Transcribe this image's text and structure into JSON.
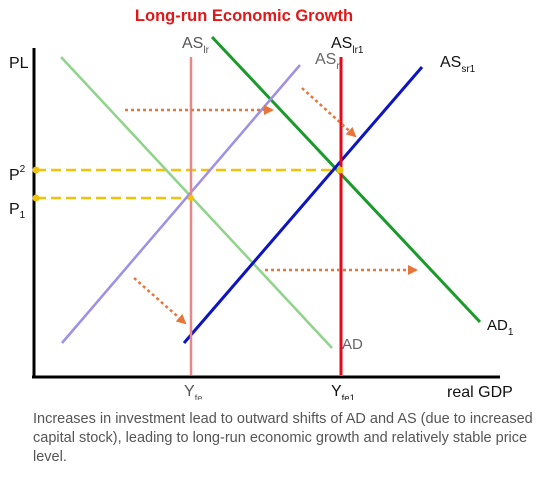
{
  "title": "Long-run Economic  Growth",
  "axes": {
    "y_label": "PL",
    "x_label": "real GDP"
  },
  "price_levels": [
    {
      "main": "P",
      "sub": "2",
      "color": "#F2C20A"
    },
    {
      "main": "P",
      "sub": "1",
      "color": "#F2C20A"
    }
  ],
  "output_levels": [
    {
      "main": "Y",
      "sub": "fe"
    },
    {
      "main": "Y",
      "sub": "fe1"
    }
  ],
  "curves": {
    "as_lr": {
      "main": "AS",
      "sub": "lr",
      "color": "#E8878A"
    },
    "as_lr1": {
      "main": "AS",
      "sub": "lr1",
      "color": "#E4081A"
    },
    "as_sr": {
      "main": "AS",
      "sub": "r",
      "color": "#9F8FE6"
    },
    "as_sr1": {
      "main": "AS",
      "sub": "sr1",
      "color": "#0C14C4"
    },
    "ad": {
      "main": "AD",
      "sub": "",
      "color": "#8FD48A"
    },
    "ad1": {
      "main": "AD",
      "sub": "1",
      "color": "#1A9A2A"
    }
  },
  "shift_arrow_color": "#E8743A",
  "caption": "Increases in investment lead to outward shifts of AD and AS (due to increased capital stock), leading to long-run economic growth and relatively stable price level."
}
